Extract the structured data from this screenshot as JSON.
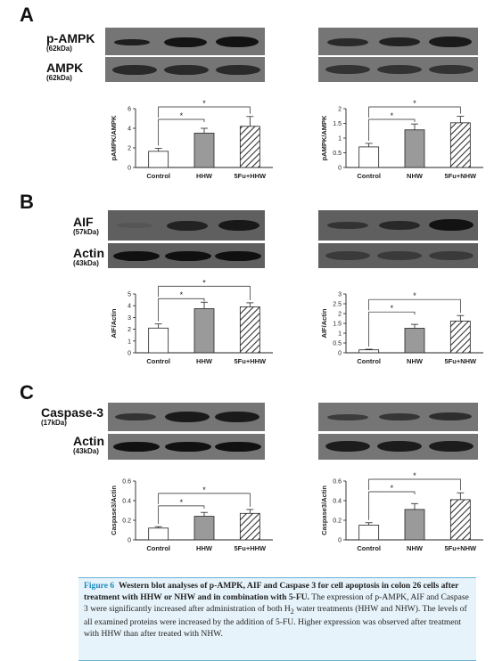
{
  "panels": {
    "A": {
      "letter": "A",
      "blot_labels": [
        {
          "name": "p-AMPK",
          "kda": "(62kDa)"
        },
        {
          "name": "AMPK",
          "kda": "(62kDa)"
        }
      ]
    },
    "B": {
      "letter": "B",
      "blot_labels": [
        {
          "name": "AIF",
          "kda": "(57kDa)"
        },
        {
          "name": "Actin",
          "kda": "(43kDa)"
        }
      ]
    },
    "C": {
      "letter": "C",
      "blot_labels": [
        {
          "name": "Caspase-3",
          "kda": "(17kDa)"
        },
        {
          "name": "Actin",
          "kda": "(43kDa)"
        }
      ]
    }
  },
  "chart_data": [
    {
      "id": "A-left",
      "type": "bar",
      "categories": [
        "Control",
        "HHW",
        "5Fu+HHW"
      ],
      "values": [
        1.65,
        3.5,
        4.2
      ],
      "errors": [
        0.3,
        0.5,
        1.0
      ],
      "ylabel": "pAMPK/AMPK",
      "ylim": [
        0,
        6
      ],
      "yticks": [
        "0",
        "2",
        "4",
        "6"
      ],
      "significance": [
        "*",
        "*"
      ],
      "patterns": [
        "white",
        "gray",
        "hatch"
      ]
    },
    {
      "id": "A-right",
      "type": "bar",
      "categories": [
        "Control",
        "NHW",
        "5Fu+NHW"
      ],
      "values": [
        0.7,
        1.28,
        1.52
      ],
      "errors": [
        0.12,
        0.2,
        0.22
      ],
      "ylabel": "pAMPK/AMPK",
      "ylim": [
        0,
        2
      ],
      "yticks": [
        "0",
        "0.5",
        "1",
        "1.5",
        "2"
      ],
      "significance": [
        "*",
        "*"
      ],
      "patterns": [
        "white",
        "gray",
        "hatch"
      ]
    },
    {
      "id": "B-left",
      "type": "bar",
      "categories": [
        "Control",
        "HHW",
        "5Fu+HHW"
      ],
      "values": [
        2.1,
        3.75,
        3.9
      ],
      "errors": [
        0.35,
        0.55,
        0.35
      ],
      "ylabel": "AIF/Actin",
      "ylim": [
        0,
        5
      ],
      "yticks": [
        "0",
        "1",
        "2",
        "3",
        "4",
        "5"
      ],
      "significance": [
        "*",
        "*"
      ],
      "patterns": [
        "white",
        "gray",
        "hatch"
      ]
    },
    {
      "id": "B-right",
      "type": "bar",
      "categories": [
        "Control",
        "NHW",
        "5Fu+NHW"
      ],
      "values": [
        0.15,
        1.25,
        1.62
      ],
      "errors": [
        0.03,
        0.2,
        0.28
      ],
      "ylabel": "AIF/Actin",
      "ylim": [
        0,
        3
      ],
      "yticks": [
        "0",
        "0.5",
        "1",
        "1.5",
        "2",
        "2.5",
        "3"
      ],
      "significance": [
        "*",
        "*"
      ],
      "patterns": [
        "white",
        "gray",
        "hatch"
      ]
    },
    {
      "id": "C-left",
      "type": "bar",
      "categories": [
        "Control",
        "HHW",
        "5Fu+HHW"
      ],
      "values": [
        0.12,
        0.24,
        0.27
      ],
      "errors": [
        0.015,
        0.04,
        0.04
      ],
      "ylabel": "Caspase3/Actin",
      "ylim": [
        0,
        0.6
      ],
      "yticks": [
        "0",
        "0.2",
        "0.4",
        "0.6"
      ],
      "significance": [
        "*",
        "*"
      ],
      "patterns": [
        "white",
        "gray",
        "hatch"
      ]
    },
    {
      "id": "C-right",
      "type": "bar",
      "categories": [
        "Control",
        "NHW",
        "5Fu+NHW"
      ],
      "values": [
        0.15,
        0.31,
        0.41
      ],
      "errors": [
        0.025,
        0.06,
        0.07
      ],
      "ylabel": "Caspase3/Actin",
      "ylim": [
        0,
        0.6
      ],
      "yticks": [
        "0",
        "0.2",
        "0.4",
        "0.6"
      ],
      "significance": [
        "*",
        "*"
      ],
      "patterns": [
        "white",
        "gray",
        "hatch"
      ]
    }
  ],
  "caption": {
    "figure_label": "Figure 6",
    "bold_part_1": "Western blot analyses of p-AMPK, AIF and Caspase 3 for cell apoptosis in colon 26 cells after treatment with HHW or NHW and in combination with 5-FU.",
    "text_1": "The expression of p-AMPK, AIF and Caspase 3 were significantly increased after administration of both H",
    "subscript": "2",
    "text_2": "water treatments (HHW and NHW). The levels of all examined proteins were increased by the addition of 5-FU. Higher expression was observed after treatment with HHW than after treated with NHW."
  },
  "colors": {
    "caption_background": "#e7f3fa",
    "caption_rule": "#6bb2d6",
    "figure_label": "#1b8ac2",
    "bar_gray": "#9a9a9a",
    "blot_background": "#5f5f5f"
  }
}
